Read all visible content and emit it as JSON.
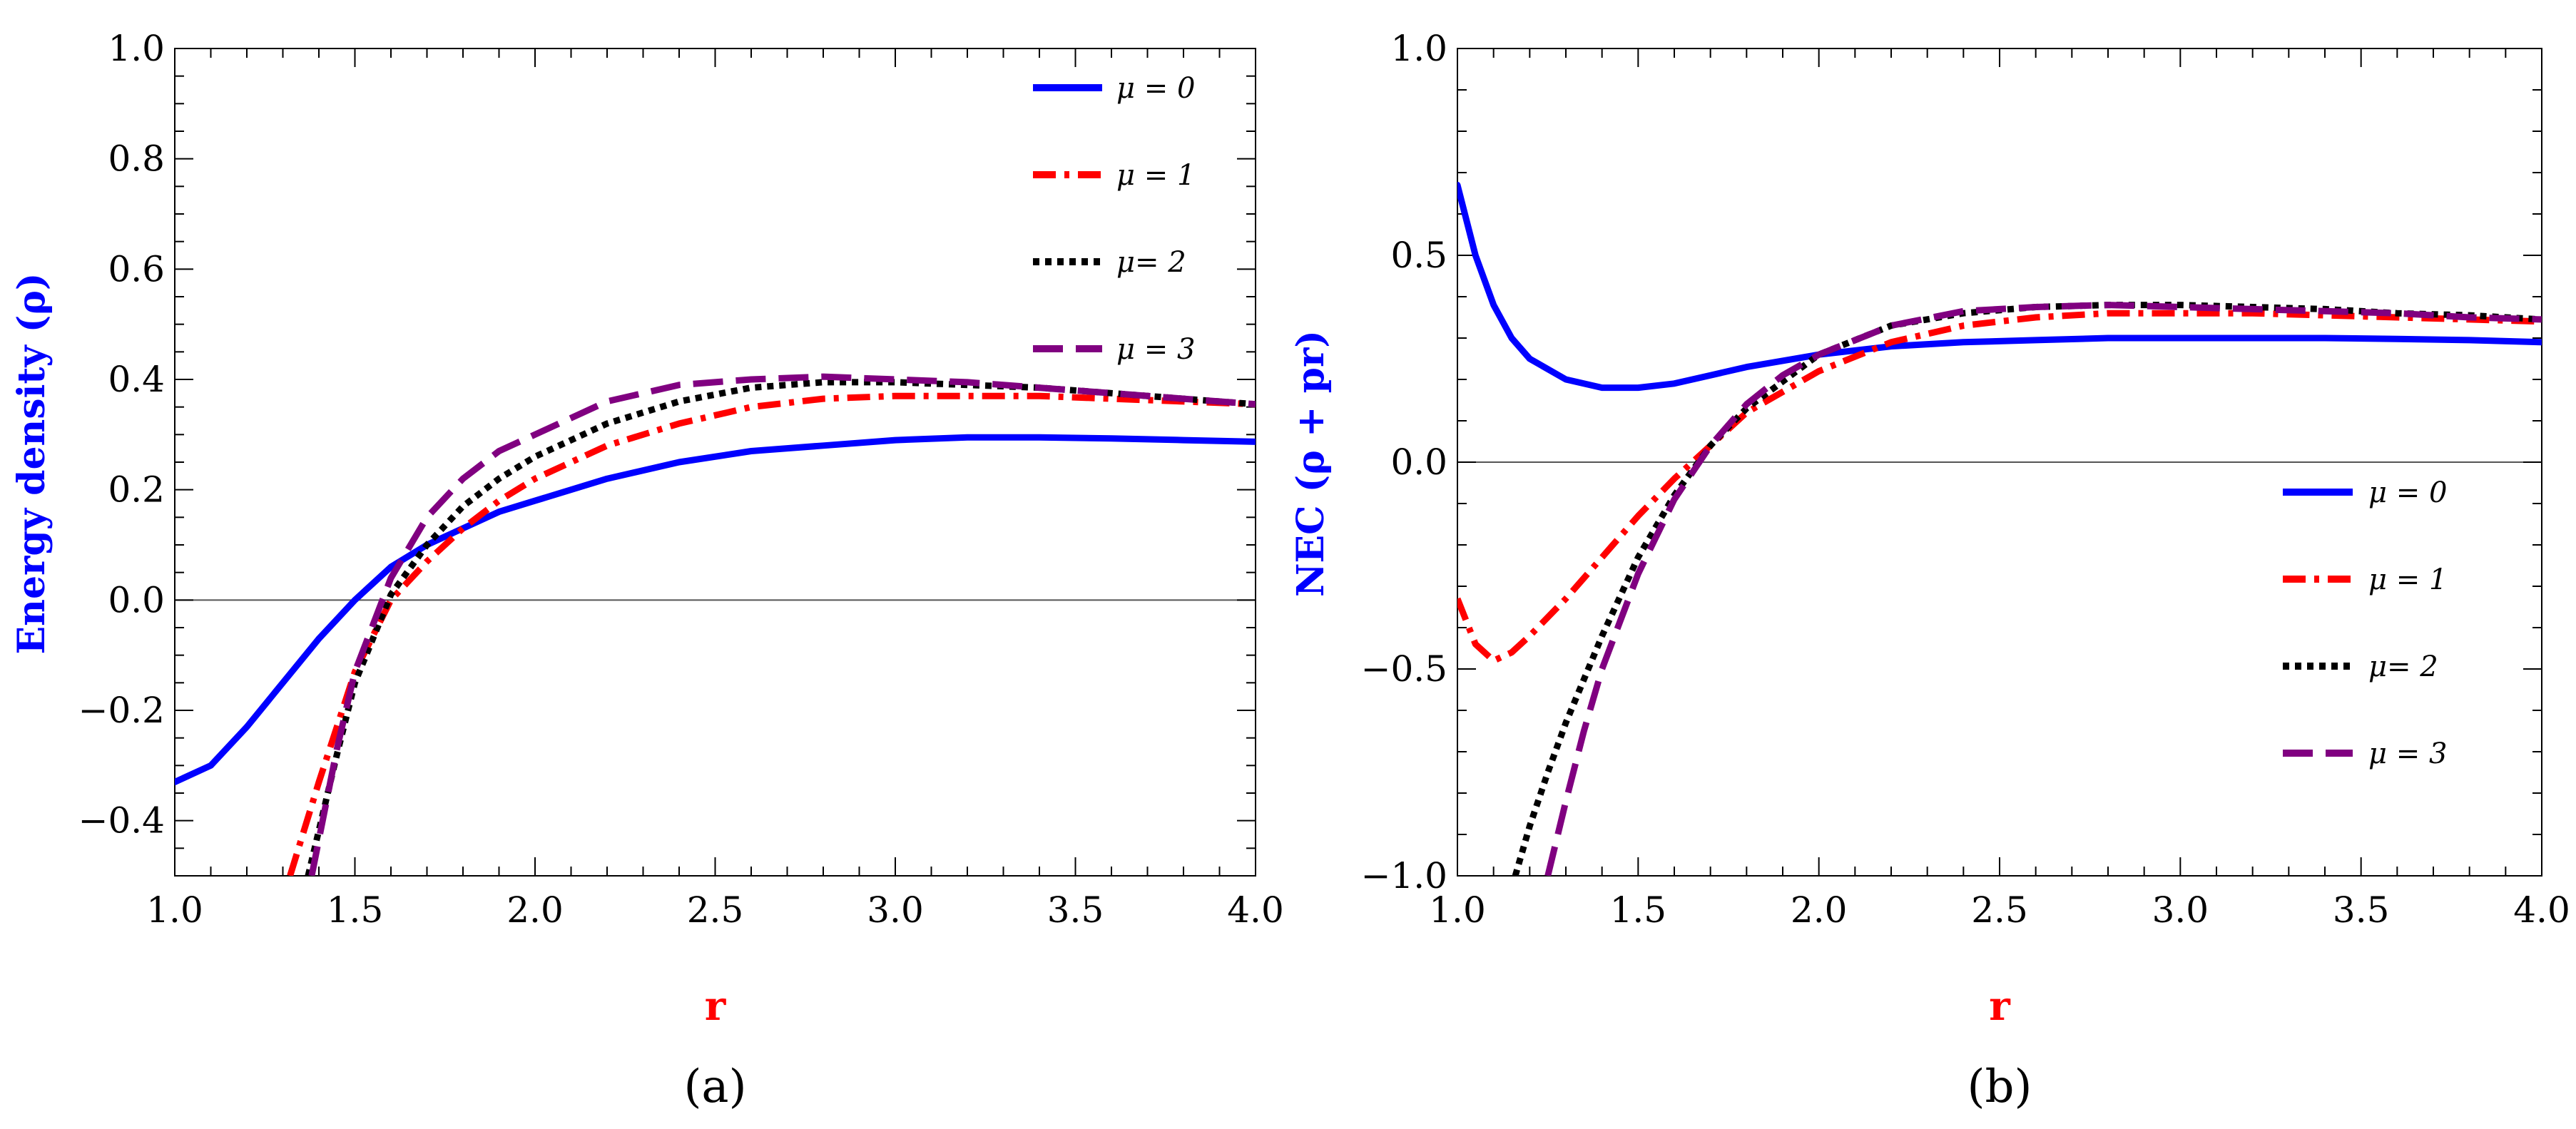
{
  "chart_data": [
    {
      "type": "line",
      "panel_label": "(a)",
      "xlabel": "r",
      "ylabel": "Energy density (ρ)",
      "xlim": [
        1.0,
        4.0
      ],
      "ylim": [
        -0.5,
        1.0
      ],
      "x_ticks": [
        "1.0",
        "1.5",
        "2.0",
        "2.5",
        "3.0",
        "3.5",
        "4.0"
      ],
      "y_ticks": [
        "−0.4",
        "−0.2",
        "0.0",
        "0.2",
        "0.4",
        "0.6",
        "0.8",
        "1.0"
      ],
      "legend_position": "top-right",
      "series": [
        {
          "name": "μ = 0",
          "color": "#0000ff",
          "style": "solid",
          "x": [
            1.0,
            1.1,
            1.2,
            1.3,
            1.4,
            1.5,
            1.6,
            1.7,
            1.8,
            1.9,
            2.0,
            2.2,
            2.4,
            2.6,
            2.8,
            3.0,
            3.2,
            3.4,
            3.6,
            3.8,
            4.0
          ],
          "y": [
            -0.33,
            -0.3,
            -0.23,
            -0.15,
            -0.07,
            0.0,
            0.06,
            0.1,
            0.13,
            0.16,
            0.18,
            0.22,
            0.25,
            0.27,
            0.28,
            0.29,
            0.295,
            0.295,
            0.293,
            0.29,
            0.287
          ]
        },
        {
          "name": "μ = 1",
          "color": "#ff0000",
          "style": "dashdot",
          "x": [
            1.32,
            1.4,
            1.5,
            1.6,
            1.7,
            1.8,
            1.9,
            2.0,
            2.2,
            2.4,
            2.6,
            2.8,
            3.0,
            3.2,
            3.4,
            3.6,
            3.8,
            4.0
          ],
          "y": [
            -0.5,
            -0.33,
            -0.13,
            0.0,
            0.07,
            0.13,
            0.18,
            0.22,
            0.28,
            0.32,
            0.35,
            0.365,
            0.37,
            0.37,
            0.37,
            0.365,
            0.36,
            0.355
          ]
        },
        {
          "name": "μ= 2",
          "color": "#000000",
          "style": "dotted",
          "x": [
            1.37,
            1.45,
            1.5,
            1.6,
            1.7,
            1.8,
            1.9,
            2.0,
            2.2,
            2.4,
            2.6,
            2.8,
            3.0,
            3.2,
            3.4,
            3.6,
            3.8,
            4.0
          ],
          "y": [
            -0.5,
            -0.28,
            -0.15,
            0.01,
            0.1,
            0.17,
            0.22,
            0.26,
            0.32,
            0.36,
            0.385,
            0.395,
            0.395,
            0.39,
            0.385,
            0.375,
            0.365,
            0.355
          ]
        },
        {
          "name": "μ = 3",
          "color": "#800080",
          "style": "dashed",
          "x": [
            1.38,
            1.45,
            1.5,
            1.6,
            1.7,
            1.8,
            1.9,
            2.0,
            2.2,
            2.4,
            2.6,
            2.8,
            3.0,
            3.2,
            3.4,
            3.6,
            3.8,
            4.0
          ],
          "y": [
            -0.5,
            -0.27,
            -0.13,
            0.04,
            0.15,
            0.22,
            0.27,
            0.3,
            0.36,
            0.39,
            0.4,
            0.405,
            0.4,
            0.395,
            0.385,
            0.375,
            0.365,
            0.355
          ]
        }
      ]
    },
    {
      "type": "line",
      "panel_label": "(b)",
      "xlabel": "r",
      "ylabel": "NEC (ρ + pr)",
      "xlim": [
        1.0,
        4.0
      ],
      "ylim": [
        -1.0,
        1.0
      ],
      "x_ticks": [
        "1.0",
        "1.5",
        "2.0",
        "2.5",
        "3.0",
        "3.5",
        "4.0"
      ],
      "y_ticks": [
        "−1.0",
        "−0.5",
        "0.0",
        "0.5",
        "1.0"
      ],
      "legend_position": "center-right",
      "series": [
        {
          "name": "μ = 0",
          "color": "#0000ff",
          "style": "solid",
          "x": [
            1.0,
            1.05,
            1.1,
            1.15,
            1.2,
            1.3,
            1.4,
            1.5,
            1.6,
            1.7,
            1.8,
            2.0,
            2.2,
            2.4,
            2.6,
            2.8,
            3.0,
            3.2,
            3.4,
            3.6,
            3.8,
            4.0
          ],
          "y": [
            0.67,
            0.5,
            0.38,
            0.3,
            0.25,
            0.2,
            0.18,
            0.18,
            0.19,
            0.21,
            0.23,
            0.26,
            0.28,
            0.29,
            0.295,
            0.3,
            0.3,
            0.3,
            0.3,
            0.298,
            0.295,
            0.29
          ]
        },
        {
          "name": "μ = 1",
          "color": "#ff0000",
          "style": "dashdot",
          "x": [
            1.0,
            1.05,
            1.1,
            1.15,
            1.2,
            1.3,
            1.4,
            1.5,
            1.6,
            1.7,
            1.8,
            2.0,
            2.2,
            2.4,
            2.6,
            2.8,
            3.0,
            3.2,
            3.4,
            3.6,
            3.8,
            4.0
          ],
          "y": [
            -0.33,
            -0.44,
            -0.48,
            -0.46,
            -0.42,
            -0.33,
            -0.23,
            -0.13,
            -0.04,
            0.04,
            0.12,
            0.22,
            0.29,
            0.33,
            0.35,
            0.36,
            0.36,
            0.36,
            0.355,
            0.35,
            0.345,
            0.34
          ]
        },
        {
          "name": "μ= 2",
          "color": "#000000",
          "style": "dotted",
          "x": [
            1.16,
            1.2,
            1.25,
            1.3,
            1.4,
            1.5,
            1.6,
            1.7,
            1.8,
            2.0,
            2.2,
            2.4,
            2.6,
            2.8,
            3.0,
            3.2,
            3.4,
            3.6,
            3.8,
            4.0
          ],
          "y": [
            -1.0,
            -0.88,
            -0.75,
            -0.63,
            -0.42,
            -0.23,
            -0.08,
            0.04,
            0.13,
            0.26,
            0.33,
            0.36,
            0.375,
            0.38,
            0.38,
            0.375,
            0.37,
            0.36,
            0.355,
            0.345
          ]
        },
        {
          "name": "μ = 3",
          "color": "#800080",
          "style": "dashed",
          "x": [
            1.25,
            1.3,
            1.35,
            1.4,
            1.5,
            1.6,
            1.7,
            1.8,
            1.9,
            2.0,
            2.2,
            2.4,
            2.6,
            2.8,
            3.0,
            3.2,
            3.4,
            3.6,
            3.8,
            4.0
          ],
          "y": [
            -1.0,
            -0.82,
            -0.65,
            -0.5,
            -0.27,
            -0.09,
            0.04,
            0.14,
            0.21,
            0.26,
            0.33,
            0.365,
            0.375,
            0.38,
            0.375,
            0.37,
            0.365,
            0.36,
            0.35,
            0.345
          ]
        }
      ]
    }
  ]
}
